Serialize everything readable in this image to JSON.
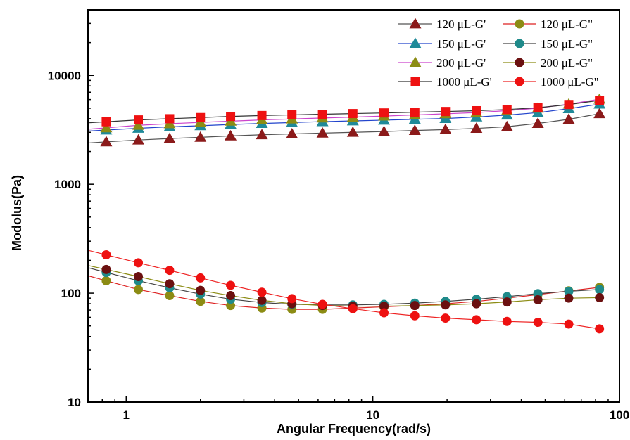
{
  "chart_data": {
    "type": "scatter",
    "title": "",
    "xlabel": "Angular Frequency(rad/s)",
    "ylabel": "Modolus(Pa)",
    "x_scale": "log",
    "y_scale": "log",
    "xlim": [
      0.7,
      100
    ],
    "ylim": [
      10,
      40000
    ],
    "x_ticks": [
      1,
      10,
      100
    ],
    "x_tick_labels": [
      "1",
      "10",
      "100"
    ],
    "y_ticks": [
      10,
      100,
      1000,
      10000
    ],
    "y_tick_labels": [
      "10",
      "100",
      "1000",
      "10000"
    ],
    "grid": false,
    "legend_position": "top-right",
    "x": [
      0.83,
      1.12,
      1.5,
      2.0,
      2.65,
      3.55,
      4.7,
      6.25,
      8.3,
      11.1,
      14.8,
      19.7,
      26.3,
      35.0,
      46.7,
      62.3,
      83.0
    ],
    "series": [
      {
        "name": "120 μL-G'",
        "marker": "triangle",
        "marker_color": "#8b1a1a",
        "line_color": "#555555",
        "values": [
          2450,
          2550,
          2630,
          2700,
          2780,
          2850,
          2900,
          2950,
          3000,
          3050,
          3120,
          3180,
          3260,
          3380,
          3620,
          3950,
          4450
        ]
      },
      {
        "name": "120 μL-G\"",
        "marker": "circle",
        "marker_color": "#8c8c14",
        "line_color": "#dd2222",
        "values": [
          130,
          108,
          95,
          84,
          77,
          73,
          71,
          71,
          73,
          75,
          77,
          80,
          84,
          90,
          97,
          105,
          113
        ]
      },
      {
        "name": "150 μL-G'",
        "marker": "triangle",
        "marker_color": "#1f8a99",
        "line_color": "#2244cc",
        "values": [
          3150,
          3270,
          3370,
          3450,
          3540,
          3620,
          3690,
          3760,
          3820,
          3880,
          3950,
          4020,
          4150,
          4320,
          4550,
          4950,
          5450
        ]
      },
      {
        "name": "150 μL-G\"",
        "marker": "circle",
        "marker_color": "#1f8a8a",
        "line_color": "#444444",
        "values": [
          155,
          130,
          112,
          98,
          88,
          82,
          79,
          78,
          78,
          79,
          81,
          84,
          88,
          93,
          99,
          104,
          108
        ]
      },
      {
        "name": "200 μL-G'",
        "marker": "triangle",
        "marker_color": "#8c8c14",
        "line_color": "#cc44cc",
        "values": [
          3300,
          3480,
          3600,
          3700,
          3800,
          3900,
          3980,
          4060,
          4140,
          4230,
          4330,
          4440,
          4560,
          4750,
          5000,
          5450,
          6050
        ]
      },
      {
        "name": "200 μL-G\"",
        "marker": "circle",
        "marker_color": "#6b1010",
        "line_color": "#8c8c14",
        "values": [
          165,
          142,
          122,
          106,
          95,
          86,
          80,
          77,
          76,
          76,
          77,
          78,
          80,
          83,
          87,
          90,
          91
        ]
      },
      {
        "name": "1000 μL-G'",
        "marker": "square",
        "marker_color": "#ee1111",
        "line_color": "#333333",
        "values": [
          3750,
          3900,
          4000,
          4100,
          4200,
          4280,
          4340,
          4400,
          4460,
          4520,
          4590,
          4660,
          4740,
          4860,
          5050,
          5400,
          5900
        ]
      },
      {
        "name": "1000 μL-G\"",
        "marker": "circle",
        "marker_color": "#ee1111",
        "line_color": "#ee2222",
        "values": [
          225,
          190,
          162,
          138,
          118,
          102,
          89,
          79,
          72,
          66,
          62,
          59,
          57,
          55,
          54,
          52,
          47
        ]
      }
    ]
  }
}
